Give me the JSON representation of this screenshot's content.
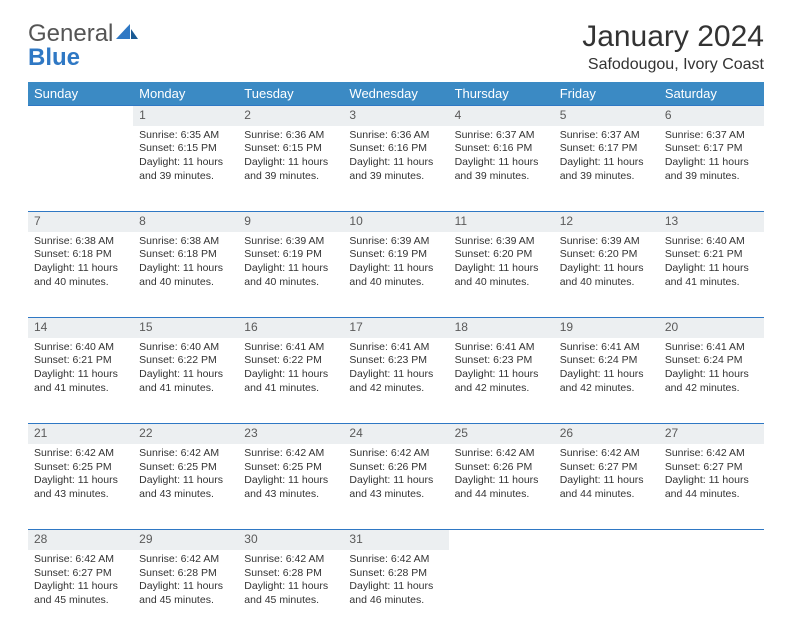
{
  "logo": {
    "text1": "General",
    "text2": "Blue"
  },
  "title": "January 2024",
  "location": "Safodougou, Ivory Coast",
  "colors": {
    "header_bg": "#3b8ac4",
    "header_text": "#ffffff",
    "daynum_bg": "#eceff1",
    "row_divider": "#2f78c4",
    "logo_gray": "#555555",
    "logo_blue": "#2f78c4",
    "body_text": "#333333",
    "page_bg": "#ffffff"
  },
  "typography": {
    "title_fontsize": 30,
    "location_fontsize": 16,
    "weekday_fontsize": 13,
    "daynum_fontsize": 12,
    "cell_fontsize": 10.5
  },
  "weekdays": [
    "Sunday",
    "Monday",
    "Tuesday",
    "Wednesday",
    "Thursday",
    "Friday",
    "Saturday"
  ],
  "weeks": [
    [
      null,
      {
        "n": "1",
        "sunrise": "Sunrise: 6:35 AM",
        "sunset": "Sunset: 6:15 PM",
        "daylight": "Daylight: 11 hours and 39 minutes."
      },
      {
        "n": "2",
        "sunrise": "Sunrise: 6:36 AM",
        "sunset": "Sunset: 6:15 PM",
        "daylight": "Daylight: 11 hours and 39 minutes."
      },
      {
        "n": "3",
        "sunrise": "Sunrise: 6:36 AM",
        "sunset": "Sunset: 6:16 PM",
        "daylight": "Daylight: 11 hours and 39 minutes."
      },
      {
        "n": "4",
        "sunrise": "Sunrise: 6:37 AM",
        "sunset": "Sunset: 6:16 PM",
        "daylight": "Daylight: 11 hours and 39 minutes."
      },
      {
        "n": "5",
        "sunrise": "Sunrise: 6:37 AM",
        "sunset": "Sunset: 6:17 PM",
        "daylight": "Daylight: 11 hours and 39 minutes."
      },
      {
        "n": "6",
        "sunrise": "Sunrise: 6:37 AM",
        "sunset": "Sunset: 6:17 PM",
        "daylight": "Daylight: 11 hours and 39 minutes."
      }
    ],
    [
      {
        "n": "7",
        "sunrise": "Sunrise: 6:38 AM",
        "sunset": "Sunset: 6:18 PM",
        "daylight": "Daylight: 11 hours and 40 minutes."
      },
      {
        "n": "8",
        "sunrise": "Sunrise: 6:38 AM",
        "sunset": "Sunset: 6:18 PM",
        "daylight": "Daylight: 11 hours and 40 minutes."
      },
      {
        "n": "9",
        "sunrise": "Sunrise: 6:39 AM",
        "sunset": "Sunset: 6:19 PM",
        "daylight": "Daylight: 11 hours and 40 minutes."
      },
      {
        "n": "10",
        "sunrise": "Sunrise: 6:39 AM",
        "sunset": "Sunset: 6:19 PM",
        "daylight": "Daylight: 11 hours and 40 minutes."
      },
      {
        "n": "11",
        "sunrise": "Sunrise: 6:39 AM",
        "sunset": "Sunset: 6:20 PM",
        "daylight": "Daylight: 11 hours and 40 minutes."
      },
      {
        "n": "12",
        "sunrise": "Sunrise: 6:39 AM",
        "sunset": "Sunset: 6:20 PM",
        "daylight": "Daylight: 11 hours and 40 minutes."
      },
      {
        "n": "13",
        "sunrise": "Sunrise: 6:40 AM",
        "sunset": "Sunset: 6:21 PM",
        "daylight": "Daylight: 11 hours and 41 minutes."
      }
    ],
    [
      {
        "n": "14",
        "sunrise": "Sunrise: 6:40 AM",
        "sunset": "Sunset: 6:21 PM",
        "daylight": "Daylight: 11 hours and 41 minutes."
      },
      {
        "n": "15",
        "sunrise": "Sunrise: 6:40 AM",
        "sunset": "Sunset: 6:22 PM",
        "daylight": "Daylight: 11 hours and 41 minutes."
      },
      {
        "n": "16",
        "sunrise": "Sunrise: 6:41 AM",
        "sunset": "Sunset: 6:22 PM",
        "daylight": "Daylight: 11 hours and 41 minutes."
      },
      {
        "n": "17",
        "sunrise": "Sunrise: 6:41 AM",
        "sunset": "Sunset: 6:23 PM",
        "daylight": "Daylight: 11 hours and 42 minutes."
      },
      {
        "n": "18",
        "sunrise": "Sunrise: 6:41 AM",
        "sunset": "Sunset: 6:23 PM",
        "daylight": "Daylight: 11 hours and 42 minutes."
      },
      {
        "n": "19",
        "sunrise": "Sunrise: 6:41 AM",
        "sunset": "Sunset: 6:24 PM",
        "daylight": "Daylight: 11 hours and 42 minutes."
      },
      {
        "n": "20",
        "sunrise": "Sunrise: 6:41 AM",
        "sunset": "Sunset: 6:24 PM",
        "daylight": "Daylight: 11 hours and 42 minutes."
      }
    ],
    [
      {
        "n": "21",
        "sunrise": "Sunrise: 6:42 AM",
        "sunset": "Sunset: 6:25 PM",
        "daylight": "Daylight: 11 hours and 43 minutes."
      },
      {
        "n": "22",
        "sunrise": "Sunrise: 6:42 AM",
        "sunset": "Sunset: 6:25 PM",
        "daylight": "Daylight: 11 hours and 43 minutes."
      },
      {
        "n": "23",
        "sunrise": "Sunrise: 6:42 AM",
        "sunset": "Sunset: 6:25 PM",
        "daylight": "Daylight: 11 hours and 43 minutes."
      },
      {
        "n": "24",
        "sunrise": "Sunrise: 6:42 AM",
        "sunset": "Sunset: 6:26 PM",
        "daylight": "Daylight: 11 hours and 43 minutes."
      },
      {
        "n": "25",
        "sunrise": "Sunrise: 6:42 AM",
        "sunset": "Sunset: 6:26 PM",
        "daylight": "Daylight: 11 hours and 44 minutes."
      },
      {
        "n": "26",
        "sunrise": "Sunrise: 6:42 AM",
        "sunset": "Sunset: 6:27 PM",
        "daylight": "Daylight: 11 hours and 44 minutes."
      },
      {
        "n": "27",
        "sunrise": "Sunrise: 6:42 AM",
        "sunset": "Sunset: 6:27 PM",
        "daylight": "Daylight: 11 hours and 44 minutes."
      }
    ],
    [
      {
        "n": "28",
        "sunrise": "Sunrise: 6:42 AM",
        "sunset": "Sunset: 6:27 PM",
        "daylight": "Daylight: 11 hours and 45 minutes."
      },
      {
        "n": "29",
        "sunrise": "Sunrise: 6:42 AM",
        "sunset": "Sunset: 6:28 PM",
        "daylight": "Daylight: 11 hours and 45 minutes."
      },
      {
        "n": "30",
        "sunrise": "Sunrise: 6:42 AM",
        "sunset": "Sunset: 6:28 PM",
        "daylight": "Daylight: 11 hours and 45 minutes."
      },
      {
        "n": "31",
        "sunrise": "Sunrise: 6:42 AM",
        "sunset": "Sunset: 6:28 PM",
        "daylight": "Daylight: 11 hours and 46 minutes."
      },
      null,
      null,
      null
    ]
  ]
}
